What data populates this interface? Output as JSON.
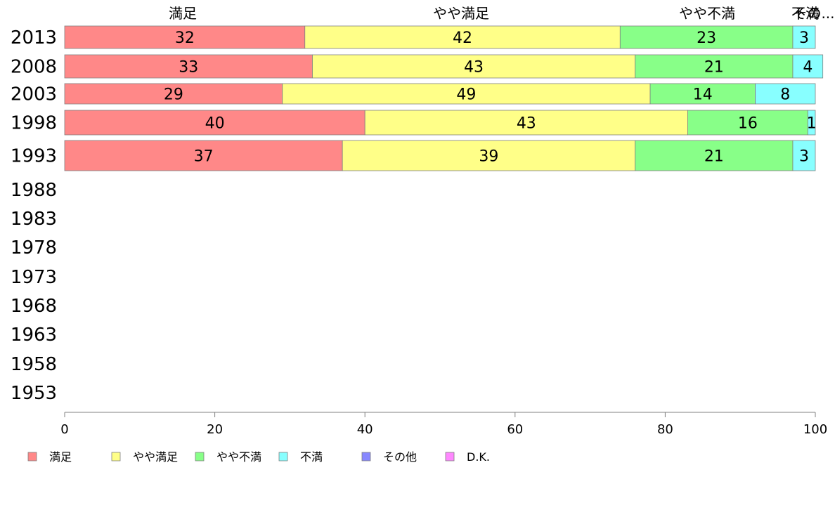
{
  "chart_data": {
    "type": "bar",
    "orientation": "horizontal",
    "stacked": true,
    "categories": [
      "2013",
      "2008",
      "2003",
      "1998",
      "1993",
      "1988",
      "1983",
      "1978",
      "1973",
      "1968",
      "1963",
      "1958",
      "1953"
    ],
    "series": [
      {
        "name": "満足",
        "color": "#ff8888",
        "values": [
          32,
          33,
          29,
          40,
          37,
          null,
          null,
          null,
          null,
          null,
          null,
          null,
          null
        ]
      },
      {
        "name": "やや満足",
        "color": "#ffff88",
        "values": [
          42,
          43,
          49,
          43,
          39,
          null,
          null,
          null,
          null,
          null,
          null,
          null,
          null
        ]
      },
      {
        "name": "やや不満",
        "color": "#88ff88",
        "values": [
          23,
          21,
          14,
          16,
          21,
          null,
          null,
          null,
          null,
          null,
          null,
          null,
          null
        ]
      },
      {
        "name": "不満",
        "color": "#88ffff",
        "values": [
          3,
          4,
          8,
          1,
          3,
          null,
          null,
          null,
          null,
          null,
          null,
          null,
          null
        ]
      },
      {
        "name": "その他",
        "color": "#8888ff",
        "values": [
          0,
          0,
          0,
          0,
          0,
          null,
          null,
          null,
          null,
          null,
          null,
          null,
          null
        ]
      },
      {
        "name": "D.K.",
        "color": "#ff88ff",
        "values": [
          0,
          0,
          0,
          0,
          0,
          null,
          null,
          null,
          null,
          null,
          null,
          null,
          null
        ]
      }
    ],
    "top_labels": [
      "満足",
      "やや満足",
      "やや不満",
      "不満",
      "その..."
    ],
    "xlim": [
      0,
      100
    ],
    "xticks": [
      "0",
      "20",
      "40",
      "60",
      "80",
      "100"
    ],
    "grid": false,
    "legend_position": "bottom-left"
  }
}
